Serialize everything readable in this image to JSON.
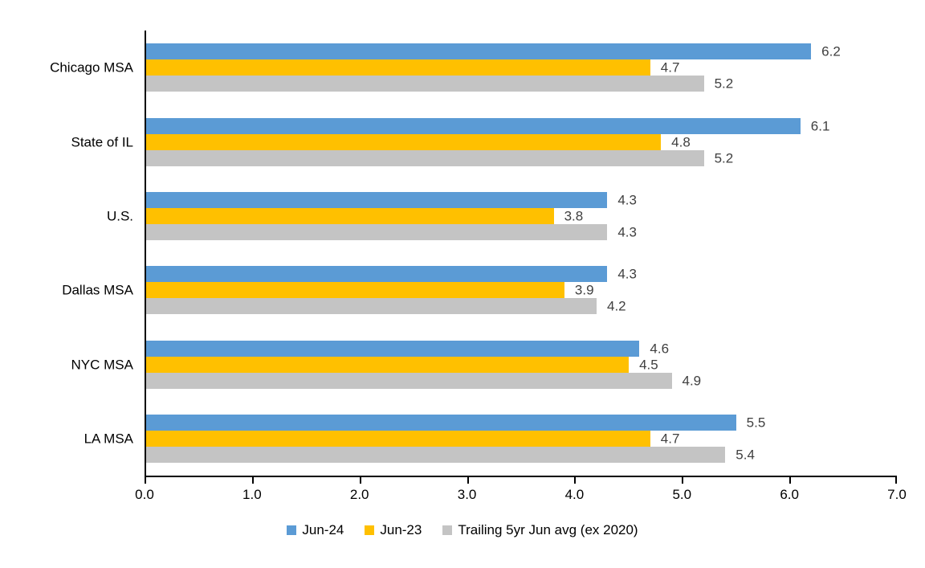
{
  "chart_data": {
    "type": "bar",
    "orientation": "horizontal",
    "title": "",
    "xlabel": "",
    "ylabel": "",
    "categories": [
      "Chicago MSA",
      "State of IL",
      "U.S.",
      "Dallas MSA",
      "NYC MSA",
      "LA MSA"
    ],
    "series": [
      {
        "name": "Jun-24",
        "color": "#5B9BD5",
        "values": [
          6.2,
          6.1,
          4.3,
          4.3,
          4.6,
          5.5
        ]
      },
      {
        "name": "Jun-23",
        "color": "#FFC000",
        "values": [
          4.7,
          4.8,
          3.8,
          3.9,
          4.5,
          4.7
        ]
      },
      {
        "name": "Trailing 5yr Jun avg (ex 2020)",
        "color": "#C4C4C4",
        "values": [
          5.2,
          5.2,
          4.3,
          4.2,
          4.9,
          5.4
        ]
      }
    ],
    "xlim": [
      0,
      7
    ],
    "x_ticks": [
      "0.0",
      "1.0",
      "2.0",
      "3.0",
      "4.0",
      "5.0",
      "6.0",
      "7.0"
    ],
    "data_labels": true,
    "data_label_color": "#404040",
    "axis_color": "#000000",
    "grid": false,
    "legend_position": "bottom"
  }
}
